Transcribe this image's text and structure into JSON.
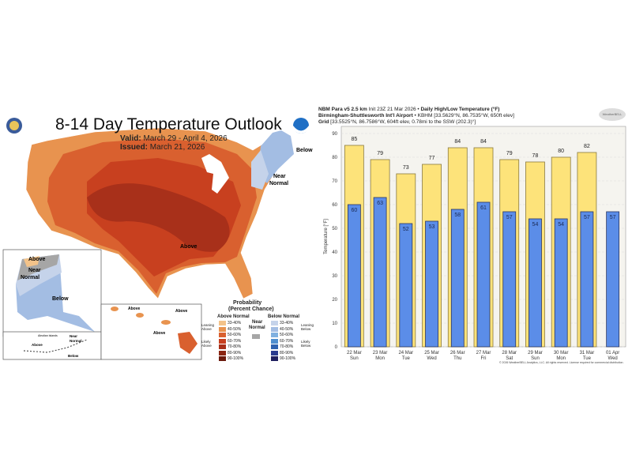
{
  "map": {
    "title": "8-14 Day Temperature Outlook",
    "valid_label": "Valid:",
    "valid_value": "March 29 - April 4, 2026",
    "issued_label": "Issued:",
    "issued_value": "March 21, 2026",
    "region_labels": {
      "below": "Below",
      "near_normal_1": "Near",
      "near_normal_2": "Normal",
      "above": "Above",
      "ak_above": "Above",
      "ak_near": "Near",
      "ak_normal": "Normal",
      "ak_below": "Below",
      "aleutian": "Aleutian Islands",
      "al_above": "Above",
      "al_near": "Near",
      "al_normal": "Normal",
      "al_below": "Below",
      "hi_above_1": "Above",
      "hi_above_2": "Above",
      "hi_above_3": "Above"
    },
    "legend": {
      "title_1": "Probability",
      "title_2": "(Percent Chance)",
      "above_header": "Above Normal",
      "below_header": "Below Normal",
      "near_1": "Near",
      "near_2": "Normal",
      "leaning_above": "Leaning Above",
      "likely_above": "Likely Above",
      "leaning_below": "Leaning Below",
      "likely_below": "Likely Below",
      "ranges": [
        "33-40%",
        "40-50%",
        "50-60%",
        "60-70%",
        "70-80%",
        "80-90%",
        "90-100%"
      ],
      "above_colors": [
        "#f3c38a",
        "#e8934f",
        "#d9602f",
        "#c8401f",
        "#a8301a",
        "#8a2512",
        "#6b1a0c"
      ],
      "below_colors": [
        "#c5d3ea",
        "#a3bde3",
        "#7fb0e0",
        "#4f8fcf",
        "#2e63b0",
        "#2a3b8f",
        "#1f1f5f"
      ],
      "near_color": "#a6a6a6"
    }
  },
  "chart_header": {
    "line1_bold": "NBM Para v5 2.5 km",
    "line1_rest": " Init 23Z 21 Mar 2026 • ",
    "line1_bold2": "Daily High/Low Temperature (°F)",
    "line2_bold": "Birmingham-Shuttlesworth Int'l Airport",
    "line2_rest": " • KBHM [33.5629°N, 86.7535°W, 650ft elev]",
    "line3_bold": "Grid",
    "line3_rest": " [33.5525°N, 86.7586°W, 604ft elev, 0.78mi to the SSW (202.3)°]",
    "logo": "WeatherBELL",
    "copyright": "© 2026 WeatherBELL Analytics, LLC. All rights reserved. License required for commercial distribution."
  },
  "chart_data": {
    "type": "bar",
    "ylabel": "Temperature [°F]",
    "ylim": [
      0,
      93
    ],
    "yticks": [
      0,
      10,
      20,
      30,
      40,
      50,
      60,
      70,
      80,
      90
    ],
    "grid": true,
    "categories": [
      "22 Mar",
      "23 Mar",
      "24 Mar",
      "25 Mar",
      "26 Mar",
      "27 Mar",
      "28 Mar",
      "29 Mar",
      "30 Mar",
      "31 Mar",
      "01 Apr"
    ],
    "weekdays": [
      "Sun",
      "Mon",
      "Tue",
      "Wed",
      "Thu",
      "Fri",
      "Sat",
      "Sun",
      "Mon",
      "Tue",
      "Wed"
    ],
    "series": [
      {
        "values": [
          85,
          79,
          73,
          77,
          84,
          84,
          79,
          78,
          80,
          82,
          null
        ],
        "color": "#fde37a"
      },
      {
        "values": [
          60,
          63,
          52,
          53,
          58,
          61,
          57,
          54,
          54,
          57,
          57
        ],
        "color": "#5b8de8"
      }
    ]
  }
}
